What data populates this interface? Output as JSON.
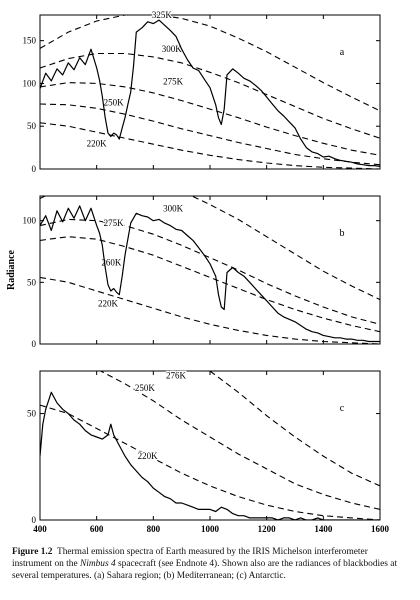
{
  "figure": {
    "shared_ylabel": "Radiance",
    "xticks": [
      400,
      600,
      800,
      1000,
      1200,
      1400,
      1600
    ]
  },
  "chart_data": [
    {
      "type": "line",
      "panel_label": "a",
      "xlim": [
        400,
        1600
      ],
      "ylim": [
        0,
        180
      ],
      "yticks": [
        0,
        50,
        100,
        150
      ],
      "blackbodies": [
        {
          "label": "325K",
          "label_x": 830,
          "label_y": 180,
          "x": [
            400,
            500,
            600,
            700,
            800,
            900,
            1000,
            1100,
            1200,
            1300,
            1400,
            1500,
            1600
          ],
          "y": [
            141,
            160,
            173,
            180,
            181,
            176,
            167,
            153,
            137,
            119,
            101,
            84,
            68
          ]
        },
        {
          "label": "300K",
          "label_x": 865,
          "label_y": 140,
          "x": [
            400,
            500,
            600,
            700,
            800,
            900,
            1000,
            1100,
            1200,
            1300,
            1400,
            1500,
            1600
          ],
          "y": [
            118,
            129,
            135,
            135,
            131,
            124,
            113,
            101,
            87,
            73,
            59,
            47,
            36
          ]
        },
        {
          "label": "275K",
          "label_x": 870,
          "label_y": 102,
          "x": [
            400,
            500,
            600,
            700,
            800,
            900,
            1000,
            1100,
            1200,
            1300,
            1400,
            1500,
            1600
          ],
          "y": [
            96,
            101,
            100,
            96,
            89,
            80,
            70,
            60,
            49,
            39,
            30,
            22,
            16
          ]
        },
        {
          "label": "250K",
          "label_x": 660,
          "label_y": 78,
          "x": [
            400,
            500,
            600,
            700,
            800,
            900,
            1000,
            1100,
            1200,
            1300,
            1400,
            1500,
            1600
          ],
          "y": [
            76,
            75,
            71,
            64,
            56,
            47,
            39,
            31,
            24,
            17,
            12,
            8,
            5
          ]
        },
        {
          "label": "220K",
          "label_x": 600,
          "label_y": 30,
          "x": [
            400,
            500,
            600,
            700,
            800,
            900,
            1000,
            1100,
            1200,
            1300,
            1400,
            1500,
            1600
          ],
          "y": [
            54,
            50,
            43,
            36,
            29,
            22,
            16,
            11,
            7,
            4,
            2,
            1,
            0
          ]
        }
      ],
      "spectrum": {
        "x": [
          400,
          420,
          440,
          460,
          480,
          500,
          520,
          540,
          560,
          580,
          600,
          610,
          620,
          630,
          640,
          650,
          660,
          670,
          680,
          690,
          700,
          710,
          720,
          730,
          740,
          760,
          780,
          800,
          820,
          840,
          860,
          880,
          900,
          920,
          940,
          960,
          980,
          1000,
          1020,
          1030,
          1040,
          1050,
          1060,
          1080,
          1100,
          1120,
          1140,
          1160,
          1180,
          1200,
          1220,
          1240,
          1260,
          1280,
          1300,
          1320,
          1340,
          1360,
          1380,
          1400,
          1420,
          1440,
          1460,
          1480,
          1500,
          1520,
          1540,
          1560,
          1580,
          1600
        ],
        "y": [
          94,
          112,
          103,
          117,
          110,
          124,
          116,
          130,
          122,
          140,
          118,
          104,
          85,
          60,
          42,
          38,
          42,
          40,
          35,
          48,
          60,
          75,
          90,
          120,
          160,
          165,
          172,
          170,
          174,
          168,
          162,
          155,
          140,
          128,
          118,
          115,
          105,
          95,
          75,
          60,
          52,
          70,
          110,
          117,
          112,
          106,
          103,
          98,
          92,
          84,
          76,
          68,
          62,
          55,
          48,
          35,
          25,
          20,
          18,
          14,
          15,
          12,
          10,
          9,
          8,
          6,
          5,
          4,
          4,
          3
        ]
      }
    },
    {
      "type": "line",
      "panel_label": "b",
      "xlim": [
        400,
        1600
      ],
      "ylim": [
        0,
        120
      ],
      "yticks": [
        0,
        50,
        100
      ],
      "blackbodies": [
        {
          "label": "300K",
          "label_x": 870,
          "label_y": 110,
          "x": [
            400,
            500,
            600,
            700,
            800,
            900,
            1000,
            1100,
            1200,
            1300,
            1400,
            1500,
            1600
          ],
          "y": [
            118,
            129,
            135,
            135,
            131,
            124,
            113,
            101,
            87,
            73,
            59,
            47,
            36
          ]
        },
        {
          "label": "275K",
          "label_x": 660,
          "label_y": 98,
          "x": [
            400,
            500,
            600,
            700,
            800,
            900,
            1000,
            1100,
            1200,
            1300,
            1400,
            1500,
            1600
          ],
          "y": [
            96,
            101,
            100,
            96,
            89,
            80,
            70,
            60,
            49,
            39,
            30,
            22,
            16
          ]
        },
        {
          "label": "260K",
          "label_x": 652,
          "label_y": 66,
          "x": [
            400,
            500,
            600,
            700,
            800,
            900,
            1000,
            1100,
            1200,
            1300,
            1400,
            1500,
            1600
          ],
          "y": [
            84,
            87,
            85,
            79,
            72,
            63,
            54,
            45,
            36,
            28,
            21,
            15,
            10
          ]
        },
        {
          "label": "220K",
          "label_x": 640,
          "label_y": 33,
          "x": [
            400,
            500,
            600,
            700,
            800,
            900,
            1000,
            1100,
            1200,
            1300,
            1400,
            1500,
            1600
          ],
          "y": [
            54,
            50,
            43,
            36,
            29,
            22,
            16,
            11,
            7,
            4,
            2,
            1,
            0
          ]
        }
      ],
      "spectrum": {
        "x": [
          400,
          420,
          440,
          460,
          480,
          500,
          520,
          540,
          560,
          580,
          600,
          610,
          620,
          630,
          640,
          650,
          660,
          670,
          680,
          690,
          700,
          720,
          740,
          760,
          780,
          800,
          820,
          840,
          860,
          880,
          900,
          920,
          940,
          960,
          980,
          1000,
          1020,
          1030,
          1040,
          1050,
          1060,
          1080,
          1100,
          1120,
          1140,
          1160,
          1180,
          1200,
          1220,
          1240,
          1260,
          1280,
          1300,
          1320,
          1340,
          1360,
          1380,
          1400,
          1420,
          1440,
          1460,
          1480,
          1500,
          1520,
          1540,
          1560,
          1580,
          1600
        ],
        "y": [
          96,
          104,
          92,
          108,
          99,
          110,
          102,
          112,
          100,
          110,
          96,
          90,
          80,
          62,
          48,
          43,
          45,
          42,
          40,
          55,
          72,
          98,
          106,
          104,
          103,
          100,
          101,
          98,
          96,
          93,
          92,
          88,
          84,
          78,
          72,
          65,
          55,
          40,
          30,
          28,
          58,
          62,
          58,
          55,
          50,
          45,
          40,
          35,
          30,
          25,
          22,
          20,
          18,
          15,
          12,
          10,
          9,
          7,
          6,
          5,
          5,
          4,
          4,
          3,
          3,
          2,
          2,
          2
        ]
      }
    },
    {
      "type": "line",
      "panel_label": "c",
      "xlim": [
        400,
        1600
      ],
      "ylim": [
        0,
        70
      ],
      "yticks": [
        0,
        50
      ],
      "blackbodies": [
        {
          "label": "276K",
          "label_x": 880,
          "label_y": 68,
          "x": [
            400,
            500,
            600,
            700,
            800,
            900,
            1000,
            1100,
            1200,
            1300,
            1400,
            1500,
            1600
          ],
          "y": [
            96,
            101,
            100,
            96,
            89,
            80,
            70,
            60,
            49,
            39,
            30,
            22,
            16
          ]
        },
        {
          "label": "250K",
          "label_x": 770,
          "label_y": 62,
          "x": [
            400,
            500,
            600,
            700,
            800,
            900,
            1000,
            1100,
            1200,
            1300,
            1400,
            1500,
            1600
          ],
          "y": [
            76,
            75,
            71,
            64,
            56,
            47,
            39,
            31,
            24,
            17,
            12,
            8,
            5
          ]
        },
        {
          "label": "220K",
          "label_x": 780,
          "label_y": 30,
          "x": [
            400,
            500,
            600,
            700,
            800,
            900,
            1000,
            1100,
            1200,
            1300,
            1400,
            1500,
            1600
          ],
          "y": [
            54,
            50,
            43,
            36,
            29,
            22,
            16,
            11,
            7,
            4,
            2,
            1,
            0
          ]
        }
      ],
      "spectrum": {
        "x": [
          400,
          410,
          420,
          440,
          460,
          480,
          500,
          520,
          540,
          560,
          580,
          600,
          620,
          640,
          650,
          660,
          680,
          700,
          720,
          740,
          760,
          780,
          800,
          820,
          840,
          860,
          880,
          900,
          920,
          940,
          960,
          980,
          1000,
          1020,
          1040,
          1060,
          1080,
          1100,
          1120,
          1140,
          1160,
          1180,
          1200,
          1220,
          1240,
          1260,
          1280,
          1300,
          1320,
          1340,
          1360,
          1380,
          1400,
          1450,
          1500,
          1550,
          1600
        ],
        "y": [
          30,
          45,
          52,
          60,
          55,
          52,
          50,
          47,
          45,
          42,
          40,
          39,
          38,
          40,
          45,
          40,
          35,
          30,
          26,
          23,
          20,
          18,
          15,
          13,
          11,
          10,
          8,
          8,
          7,
          6,
          5,
          5,
          5,
          4,
          6,
          5,
          3,
          2,
          2,
          1,
          1,
          1,
          1,
          1,
          0,
          1,
          1,
          0,
          1,
          0,
          0,
          1,
          0,
          0,
          0,
          0,
          0
        ]
      }
    }
  ],
  "caption": {
    "fig_label": "Figure 1.2",
    "part1": "Thermal emission spectra of Earth measured by the IRIS Michelson interferometer instrument on the ",
    "italic": "Nimbus 4",
    "part2": " spacecraft (see Endnote 4).  Shown also are the radiances of blackbodies at several temperatures.  (a) Sahara region; (b) Mediterranean; (c) Antarctic."
  }
}
